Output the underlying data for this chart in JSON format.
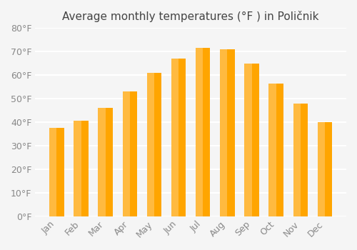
{
  "title": "Average monthly temperatures (°F ) in Poličnik",
  "months": [
    "Jan",
    "Feb",
    "Mar",
    "Apr",
    "May",
    "Jun",
    "Jul",
    "Aug",
    "Sep",
    "Oct",
    "Nov",
    "Dec"
  ],
  "values": [
    37.5,
    40.5,
    46,
    53,
    61,
    67,
    71.5,
    71,
    65,
    56.5,
    48,
    40
  ],
  "bar_color": "#FFA500",
  "bar_edge_color": "#FFA500",
  "ylim": [
    0,
    80
  ],
  "yticks": [
    0,
    10,
    20,
    30,
    40,
    50,
    60,
    70,
    80
  ],
  "ytick_labels": [
    "0°F",
    "10°F",
    "20°F",
    "30°F",
    "40°F",
    "50°F",
    "60°F",
    "70°F",
    "80°F"
  ],
  "background_color": "#f5f5f5",
  "grid_color": "#ffffff",
  "title_fontsize": 11,
  "tick_fontsize": 9,
  "bar_width": 0.6
}
